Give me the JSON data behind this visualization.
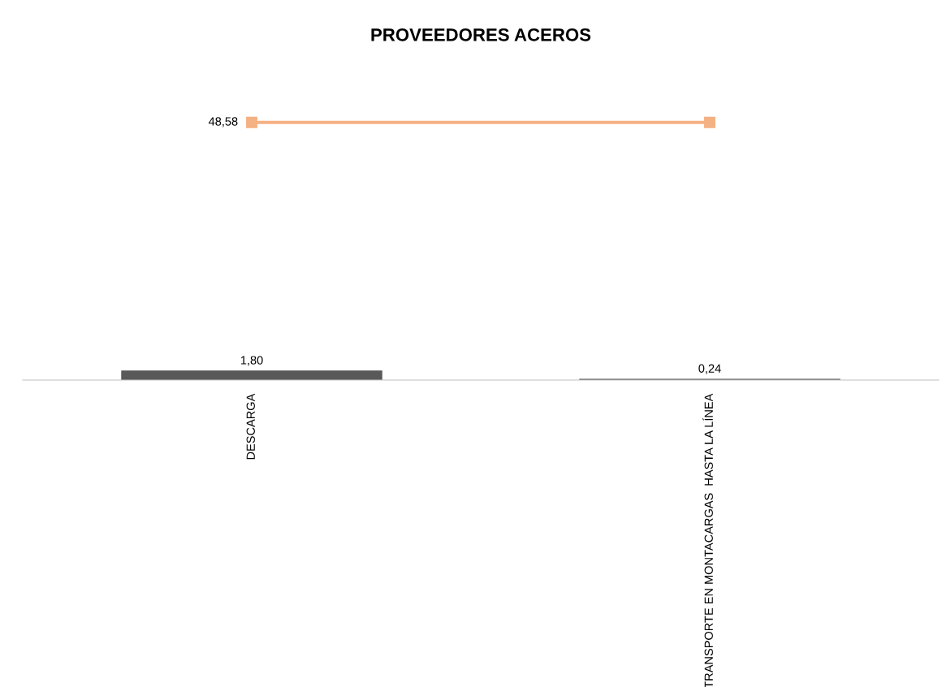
{
  "chart_data": {
    "type": "bar",
    "title": "PROVEEDORES ACEROS",
    "categories": [
      "DESCARGA",
      "TRANSPORTE EN MONTACARGAS  HASTA LA LÍNEA"
    ],
    "legend": false,
    "grid": false,
    "tick_labels": "x",
    "series": [
      {
        "color": "#595959",
        "values": [
          1.8,
          0.24
        ],
        "value_labels": [
          "1,80",
          "0,24"
        ]
      },
      {
        "type": "line",
        "color": "#f4b183",
        "values": [
          48.58,
          48.58
        ],
        "value_labels": [
          "48,58",
          null
        ],
        "marker": "square",
        "line_style": "solid"
      }
    ]
  }
}
